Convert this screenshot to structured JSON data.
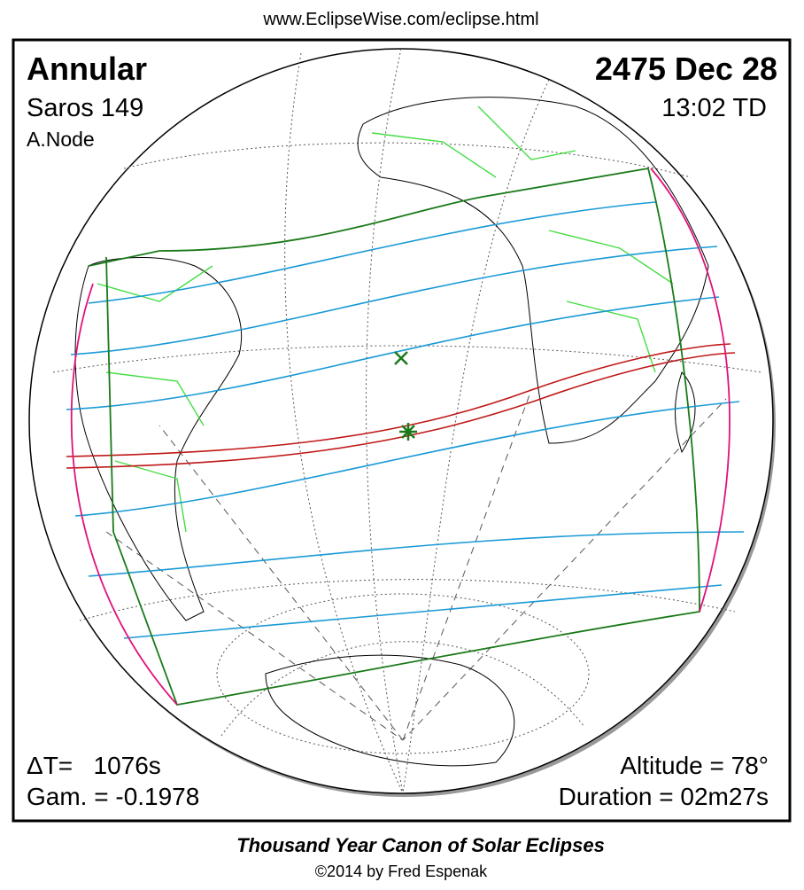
{
  "header": {
    "url": "www.EclipseWise.com/eclipse.html"
  },
  "info": {
    "type": "Annular",
    "date": "2475 Dec 28",
    "saros": "Saros 149",
    "time": "13:02 TD",
    "node": "A.Node",
    "delta_t": "ΔT=   1076s",
    "gamma": "Gam. = -0.1978",
    "altitude": "Altitude = 78°",
    "duration": "Duration = 02m27s"
  },
  "footer": {
    "title": "Thousand Year Canon of Solar Eclipses",
    "credit": "©2014 by Fred Espenak"
  }
}
